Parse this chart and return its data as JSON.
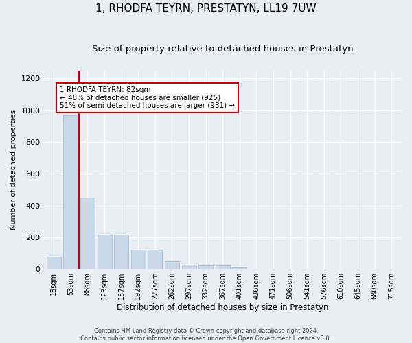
{
  "title": "1, RHODFA TEYRN, PRESTATYN, LL19 7UW",
  "subtitle": "Size of property relative to detached houses in Prestatyn",
  "xlabel": "Distribution of detached houses by size in Prestatyn",
  "ylabel": "Number of detached properties",
  "categories": [
    "18sqm",
    "53sqm",
    "88sqm",
    "123sqm",
    "157sqm",
    "192sqm",
    "227sqm",
    "262sqm",
    "297sqm",
    "332sqm",
    "367sqm",
    "401sqm",
    "436sqm",
    "471sqm",
    "506sqm",
    "541sqm",
    "576sqm",
    "610sqm",
    "645sqm",
    "680sqm",
    "715sqm"
  ],
  "values": [
    80,
    970,
    450,
    215,
    215,
    120,
    120,
    48,
    25,
    22,
    20,
    12,
    0,
    0,
    0,
    0,
    0,
    0,
    0,
    0,
    0
  ],
  "bar_color": "#c8d8e8",
  "bar_edge_color": "#a0b8cc",
  "vline_x": 1.5,
  "vline_color": "#cc0000",
  "annotation_text": "1 RHODFA TEYRN: 82sqm\n← 48% of detached houses are smaller (925)\n51% of semi-detached houses are larger (981) →",
  "annotation_box_color": "#ffffff",
  "annotation_box_edge": "#cc0000",
  "ylim": [
    0,
    1250
  ],
  "yticks": [
    0,
    200,
    400,
    600,
    800,
    1000,
    1200
  ],
  "title_fontsize": 11,
  "subtitle_fontsize": 9.5,
  "footer_text": "Contains HM Land Registry data © Crown copyright and database right 2024.\nContains public sector information licensed under the Open Government Licence v3.0.",
  "background_color": "#e8eef4",
  "grid_color": "#ffffff"
}
